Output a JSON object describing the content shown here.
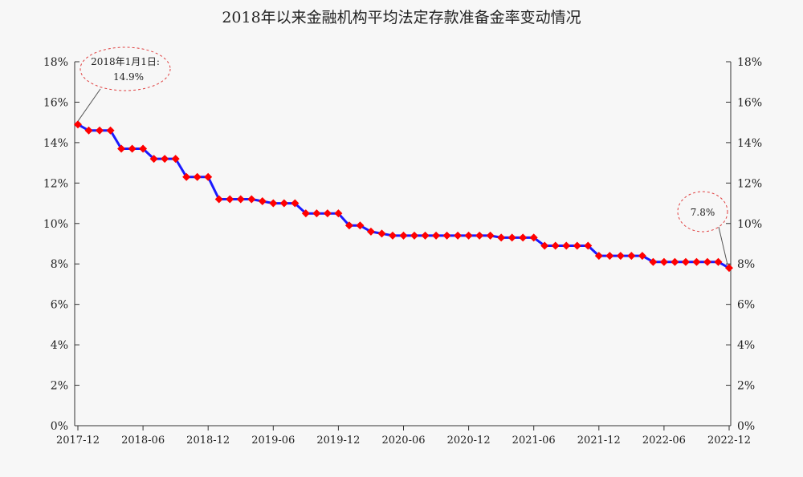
{
  "chart_data": {
    "type": "line",
    "title": "2018年以来金融机构平均法定存款准备金率变动情况",
    "xlabel": "",
    "ylabel": "",
    "x_tick_labels": [
      "2017-12",
      "2018-06",
      "2018-12",
      "2019-06",
      "2019-12",
      "2020-06",
      "2020-12",
      "2021-06",
      "2021-12",
      "2022-06",
      "2022-12"
    ],
    "y_tick_labels": [
      "0%",
      "2%",
      "4%",
      "6%",
      "8%",
      "10%",
      "12%",
      "14%",
      "16%",
      "18%"
    ],
    "ylim": [
      0,
      18
    ],
    "grid": false,
    "series": [
      {
        "x": [
          "2017-12",
          "2018-01",
          "2018-02",
          "2018-03",
          "2018-04",
          "2018-05",
          "2018-06",
          "2018-07",
          "2018-08",
          "2018-09",
          "2018-10",
          "2018-11",
          "2018-12",
          "2019-01",
          "2019-02",
          "2019-03",
          "2019-04",
          "2019-05",
          "2019-06",
          "2019-07",
          "2019-08",
          "2019-09",
          "2019-10",
          "2019-11",
          "2019-12",
          "2020-01",
          "2020-02",
          "2020-03",
          "2020-04",
          "2020-05",
          "2020-06",
          "2020-07",
          "2020-08",
          "2020-09",
          "2020-10",
          "2020-11",
          "2020-12",
          "2021-01",
          "2021-02",
          "2021-03",
          "2021-04",
          "2021-05",
          "2021-06",
          "2021-07",
          "2021-08",
          "2021-09",
          "2021-10",
          "2021-11",
          "2021-12",
          "2022-01",
          "2022-02",
          "2022-03",
          "2022-04",
          "2022-05",
          "2022-06",
          "2022-07",
          "2022-08",
          "2022-09",
          "2022-10",
          "2022-11",
          "2022-12"
        ],
        "values": [
          14.9,
          14.6,
          14.6,
          14.6,
          13.7,
          13.7,
          13.7,
          13.2,
          13.2,
          13.2,
          12.3,
          12.3,
          12.3,
          11.2,
          11.2,
          11.2,
          11.2,
          11.1,
          11.0,
          11.0,
          11.0,
          10.5,
          10.5,
          10.5,
          10.5,
          9.9,
          9.9,
          9.6,
          9.5,
          9.4,
          9.4,
          9.4,
          9.4,
          9.4,
          9.4,
          9.4,
          9.4,
          9.4,
          9.4,
          9.3,
          9.3,
          9.3,
          9.3,
          8.9,
          8.9,
          8.9,
          8.9,
          8.9,
          8.4,
          8.4,
          8.4,
          8.4,
          8.4,
          8.1,
          8.1,
          8.1,
          8.1,
          8.1,
          8.1,
          8.1,
          7.8
        ],
        "line_color": "#1a1aff",
        "marker_color": "#ff0000",
        "marker": "diamond"
      }
    ],
    "annotations": [
      {
        "text_line1": "2018年1月1日:",
        "text_line2": "14.9%",
        "point_index": 0
      },
      {
        "text_line1": "7.8%",
        "point_index": 60
      }
    ]
  }
}
